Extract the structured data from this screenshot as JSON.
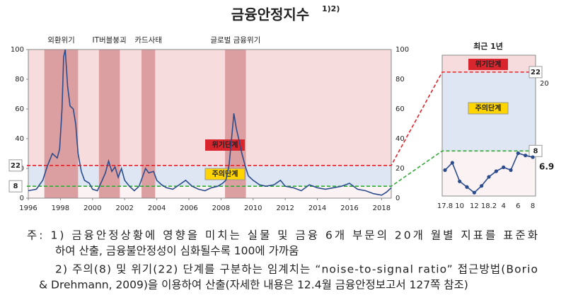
{
  "chart_data": [
    {
      "type": "line",
      "title": "금융안정지수",
      "title_superscript": "1)2)",
      "x": [
        1996.0,
        1996.5,
        1996.9,
        1997.2,
        1997.5,
        1997.8,
        1997.95,
        1998.1,
        1998.2,
        1998.3,
        1998.45,
        1998.6,
        1998.8,
        1998.95,
        1999.1,
        1999.3,
        1999.5,
        1999.8,
        2000.0,
        2000.3,
        2000.6,
        2000.8,
        2001.0,
        2001.2,
        2001.4,
        2001.6,
        2001.8,
        2002.0,
        2002.3,
        2002.6,
        2002.9,
        2003.1,
        2003.3,
        2003.5,
        2003.8,
        2004.0,
        2004.3,
        2004.6,
        2005.0,
        2005.4,
        2005.8,
        2006.2,
        2006.6,
        2007.0,
        2007.4,
        2007.8,
        2008.1,
        2008.3,
        2008.5,
        2008.7,
        2008.8,
        2008.95,
        2009.1,
        2009.3,
        2009.5,
        2009.7,
        2010.0,
        2010.4,
        2010.8,
        2011.3,
        2011.7,
        2012.0,
        2012.5,
        2013.0,
        2013.5,
        2014.0,
        2014.5,
        2015.0,
        2015.5,
        2016.0,
        2016.5,
        2017.0,
        2017.5,
        2018.0,
        2018.3,
        2018.6
      ],
      "series": [
        {
          "color": "#2b4c8c",
          "values": [
            5,
            6,
            12,
            22,
            30,
            27,
            33,
            60,
            95,
            100,
            75,
            62,
            60,
            50,
            30,
            18,
            12,
            10,
            6,
            5,
            12,
            17,
            25,
            18,
            21,
            14,
            20,
            12,
            8,
            5,
            8,
            14,
            20,
            17,
            18,
            12,
            9,
            7,
            6,
            9,
            12,
            8,
            6,
            5,
            7,
            8,
            10,
            12,
            22,
            45,
            57,
            47,
            40,
            30,
            22,
            15,
            12,
            9,
            8,
            9,
            12,
            8,
            7,
            5,
            9,
            7,
            6,
            7,
            8,
            10,
            6,
            5,
            3,
            2,
            4,
            7
          ]
        }
      ],
      "xlim": [
        1996,
        2018.6
      ],
      "xticks": [
        1996,
        1998,
        2000,
        2002,
        2004,
        2006,
        2008,
        2010,
        2012,
        2014,
        2016,
        2018
      ],
      "ylim": [
        0,
        100
      ],
      "yticks": [
        0,
        20,
        40,
        60,
        80,
        100
      ],
      "thresholds": [
        {
          "value": 22,
          "label": "위기단계",
          "color": "#e3232b"
        },
        {
          "value": 8,
          "label": "주의단계",
          "color": "#35a83a"
        }
      ],
      "periods": [
        {
          "label": "외환위기",
          "start": 1997.0,
          "end": 1999.1
        },
        {
          "label": "IT버블붕괴",
          "start": 2000.4,
          "end": 2001.7
        },
        {
          "label": "카드사태",
          "start": 2003.05,
          "end": 2003.9
        },
        {
          "label": "글로벌 금융위기",
          "start": 2008.25,
          "end": 2009.55
        }
      ]
    },
    {
      "type": "line",
      "title": "최근 1년",
      "categories": [
        "17.8",
        null,
        "10",
        null,
        "12",
        null,
        "18.2",
        null,
        "4",
        null,
        "6",
        null,
        "8"
      ],
      "series": [
        {
          "color": "#2b4c8c",
          "values": [
            4.6,
            5.9,
            2.6,
            1.6,
            0.6,
            1.8,
            3.4,
            4.4,
            5.1,
            4.6,
            7.6,
            7.2,
            6.9
          ]
        }
      ],
      "ylim": [
        0,
        25
      ],
      "yticks": [
        20
      ]
    }
  ],
  "notes": [
    "주: 1) 금융안정상황에 영향을 미치는 실물 및 금융 6개 부문의 20개 월별 지표를 표준화",
    "하여 산출, 금융불안정성이 심화될수록 100에 가까움",
    "2) 주의(8) 및 위기(22) 단계를 구분하는 임계치는 “noise-to-signal ratio” 접근방법(Borio",
    "& Drehmann, 2009)을 이용하여 산출(자세한 내용은 12.4월 금융안정보고서 127쪽 참조)"
  ]
}
